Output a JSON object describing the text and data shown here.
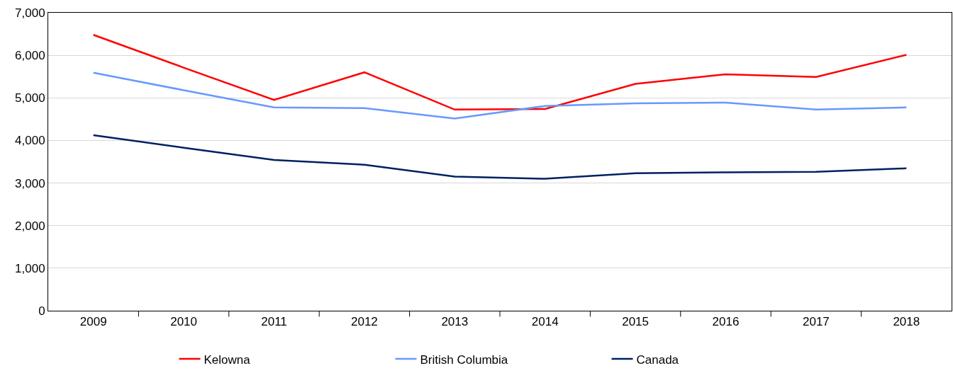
{
  "chart_data": {
    "type": "line",
    "categories": [
      "2009",
      "2010",
      "2011",
      "2012",
      "2013",
      "2014",
      "2015",
      "2016",
      "2017",
      "2018"
    ],
    "series": [
      {
        "name": "Kelowna",
        "color": "#ff0000",
        "values": [
          6480,
          5710,
          4950,
          5600,
          4725,
          4740,
          5330,
          5555,
          5490,
          6010
        ]
      },
      {
        "name": "British Columbia",
        "color": "#6699ff",
        "values": [
          5590,
          5180,
          4775,
          4760,
          4515,
          4810,
          4870,
          4890,
          4725,
          4775
        ]
      },
      {
        "name": "Canada",
        "color": "#002060",
        "values": [
          4125,
          3830,
          3540,
          3430,
          3150,
          3100,
          3230,
          3250,
          3265,
          3345
        ]
      }
    ],
    "ylim": [
      0,
      7000
    ],
    "yticks": [
      {
        "value": 0,
        "label": "0"
      },
      {
        "value": 1000,
        "label": "1,000"
      },
      {
        "value": 2000,
        "label": "2,000"
      },
      {
        "value": 3000,
        "label": "3,000"
      },
      {
        "value": 4000,
        "label": "4,000"
      },
      {
        "value": 5000,
        "label": "5,000"
      },
      {
        "value": 6000,
        "label": "6,000"
      },
      {
        "value": 7000,
        "label": "7,000"
      }
    ],
    "grid": "y",
    "legend": "bottom",
    "marker": "none",
    "line_style": "solid"
  }
}
